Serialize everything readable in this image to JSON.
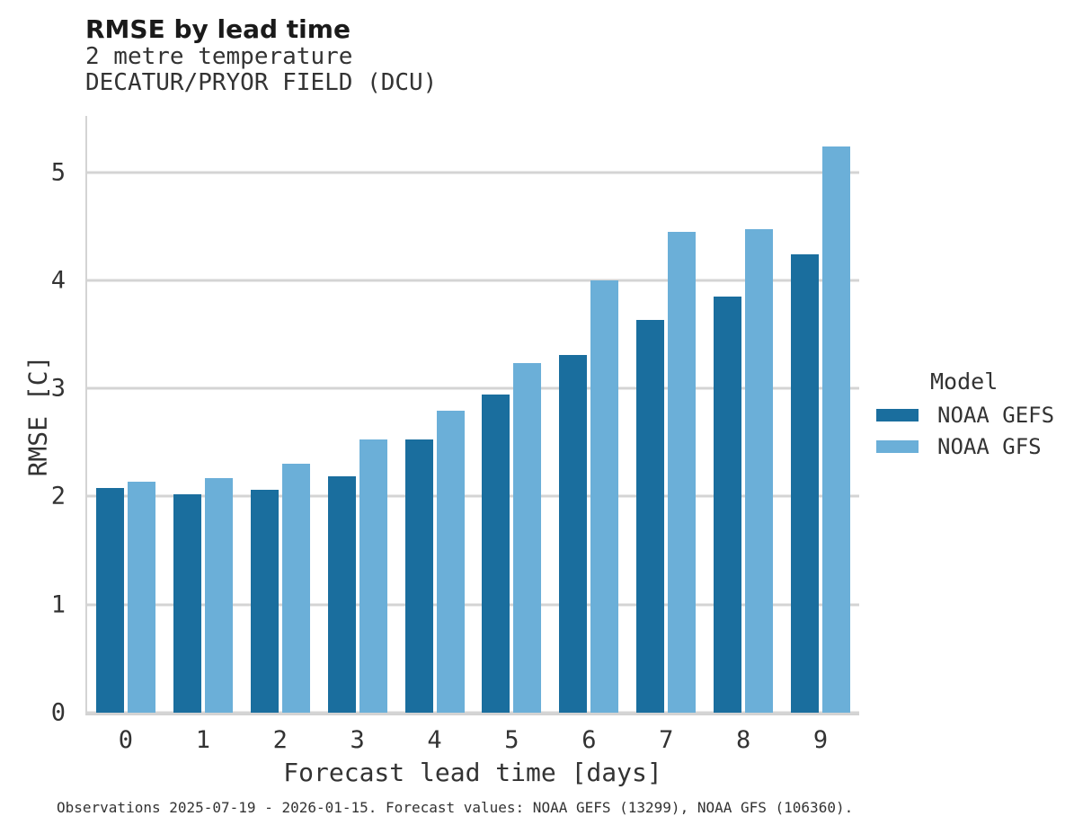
{
  "chart_data": {
    "type": "bar",
    "title": "RMSE by lead time",
    "subtitle_line1": "2 metre temperature",
    "subtitle_line2": "DECATUR/PRYOR FIELD (DCU)",
    "xlabel": "Forecast lead time [days]",
    "ylabel": "RMSE [C]",
    "categories": [
      "0",
      "1",
      "2",
      "3",
      "4",
      "5",
      "6",
      "7",
      "8",
      "9"
    ],
    "series": [
      {
        "name": "NOAA GEFS",
        "color": "#1a6e9e",
        "values": [
          2.08,
          2.02,
          2.06,
          2.19,
          2.53,
          2.94,
          3.31,
          3.63,
          3.85,
          4.24
        ]
      },
      {
        "name": "NOAA GFS",
        "color": "#6bafd8",
        "values": [
          2.14,
          2.17,
          2.3,
          2.53,
          2.79,
          3.23,
          4.0,
          4.45,
          4.47,
          5.24
        ]
      }
    ],
    "yticks": [
      0,
      1,
      2,
      3,
      4,
      5
    ],
    "ylim": [
      0,
      5.52
    ],
    "grid": true,
    "legend_title": "Model",
    "legend_position": "right",
    "caption": "Observations 2025-07-19 - 2026-01-15. Forecast values: NOAA GEFS (13299), NOAA GFS (106360)."
  },
  "style_colors": {
    "grid": "#d4d4d4",
    "text": "#333333",
    "gefs_bar": "#1a6e9e",
    "gfs_bar": "#6bafd8"
  }
}
